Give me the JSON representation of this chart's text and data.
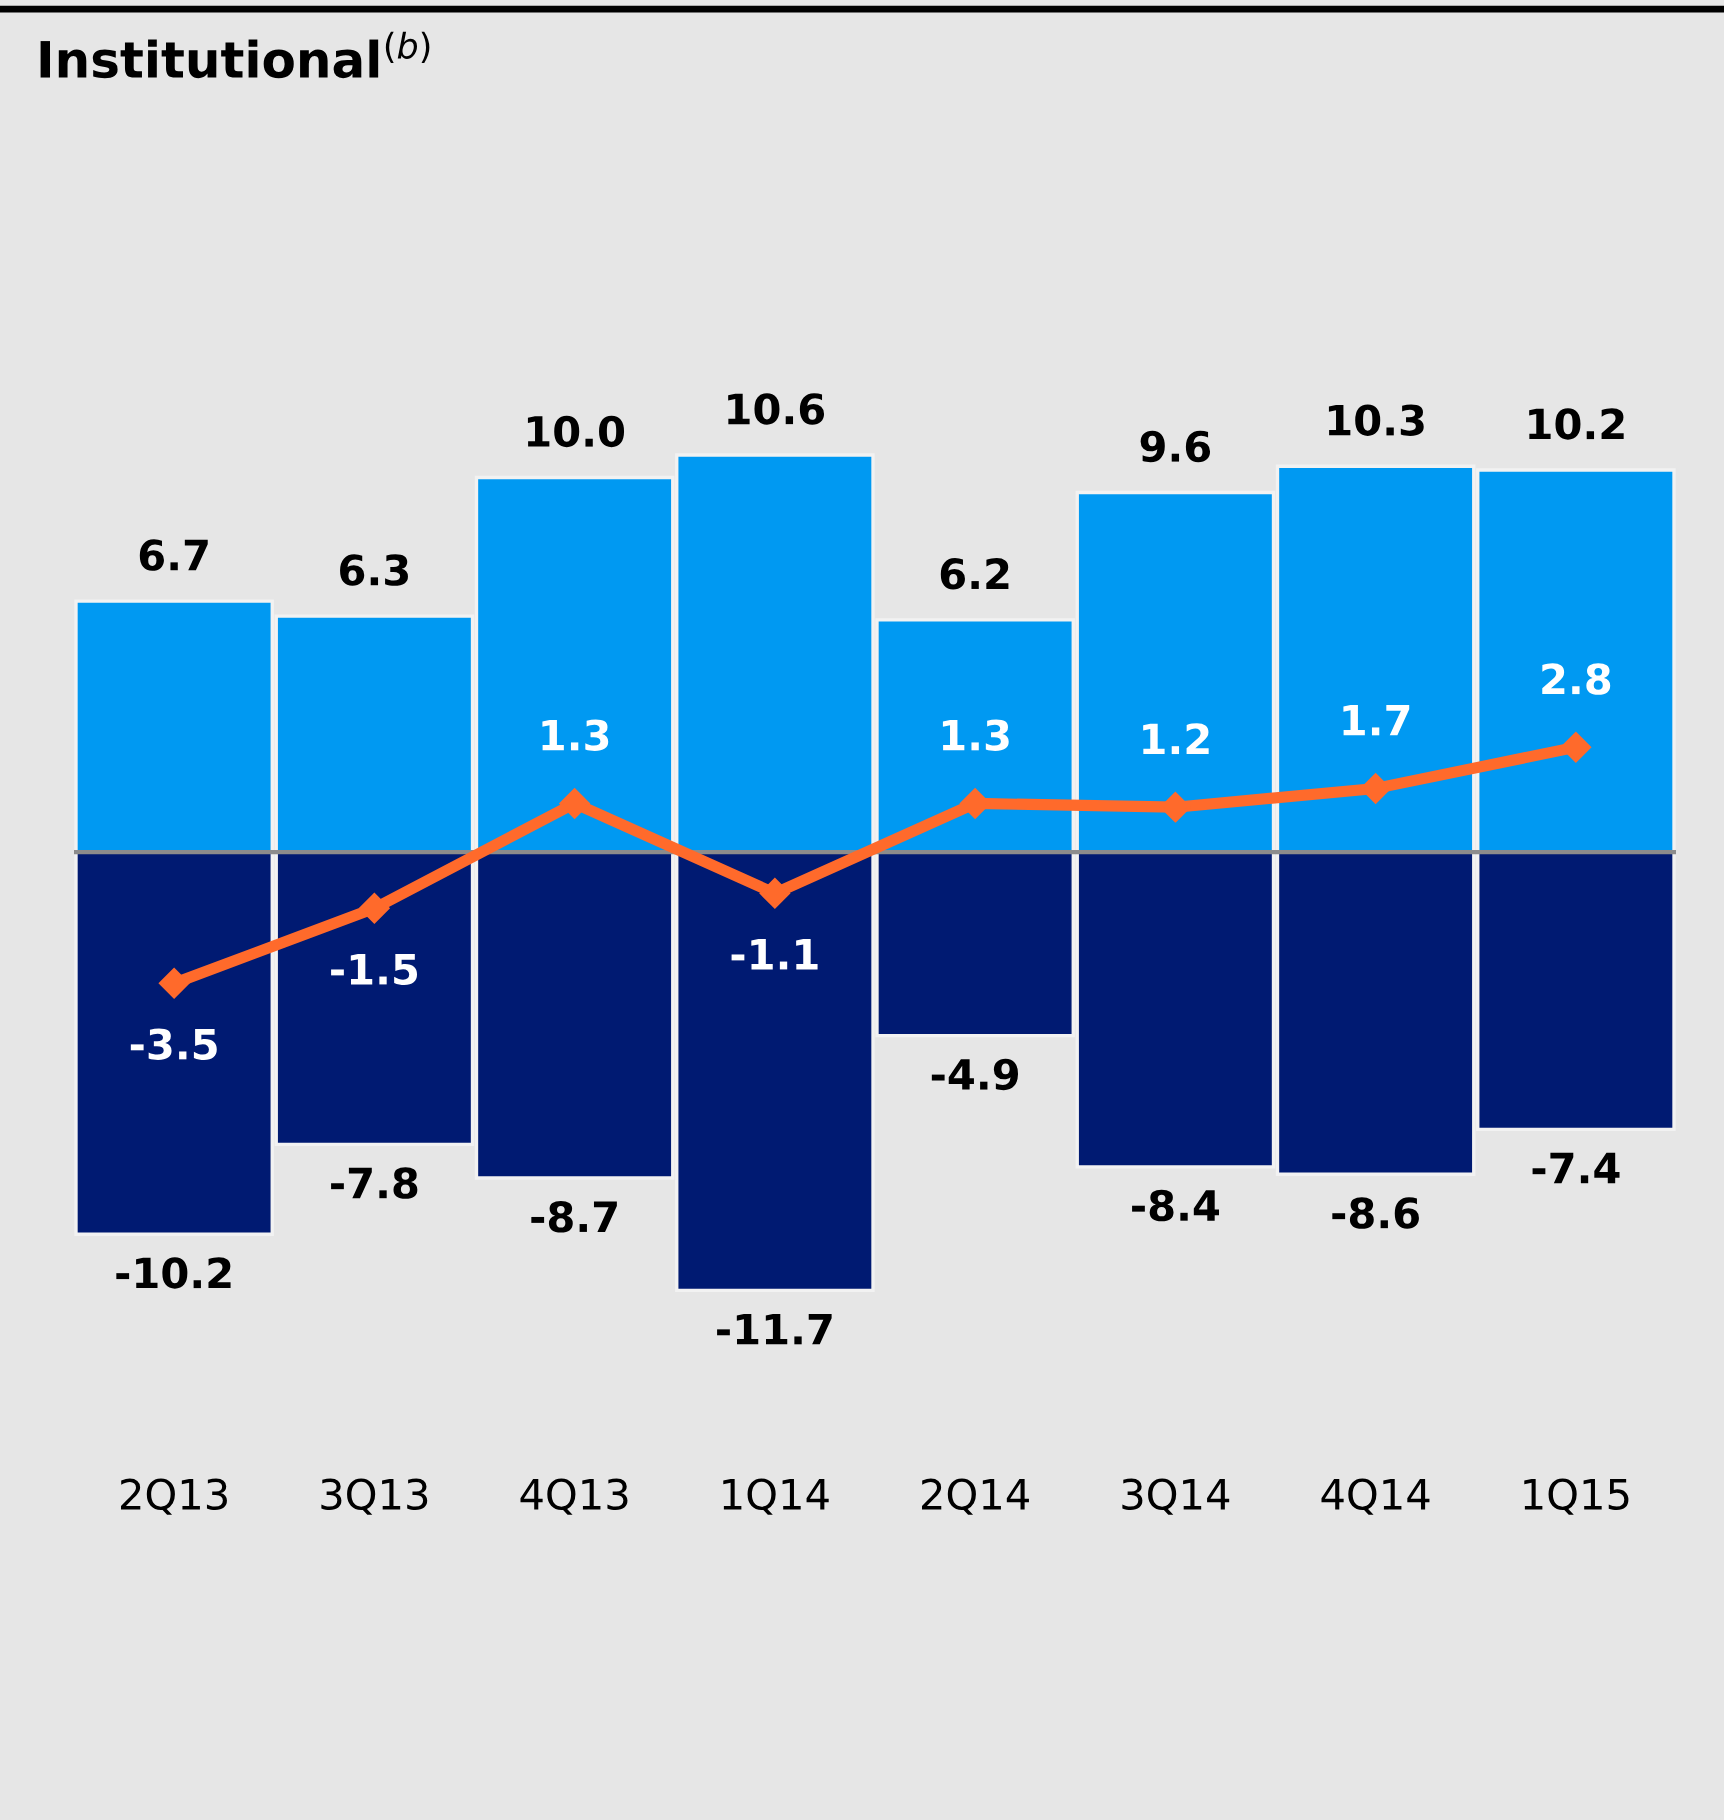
{
  "chart_data": {
    "type": "bar",
    "title": "Institutional$^{(b)}$",
    "stacked": true,
    "categories": [
      "2Q13",
      "3Q13",
      "4Q13",
      "1Q14",
      "2Q14",
      "3Q14",
      "4Q14",
      "1Q15"
    ],
    "series": [
      {
        "color": "#0099f2",
        "values": [
          6.7,
          6.3,
          10.0,
          10.6,
          6.2,
          9.6,
          10.3,
          10.2
        ],
        "value_labels": [
          "6.7",
          "6.3",
          "10.0",
          "10.6",
          "6.2",
          "9.6",
          "10.3",
          "10.2"
        ]
      },
      {
        "color": "#001a72",
        "values": [
          -10.2,
          -7.8,
          -8.7,
          -11.7,
          -4.9,
          -8.4,
          -8.6,
          -7.4
        ],
        "value_labels": [
          "-10.2",
          "-7.8",
          "-8.7",
          "-11.7",
          "-4.9",
          "-8.4",
          "-8.6",
          "-7.4"
        ]
      },
      {
        "type": "line",
        "color": "#ff6a2b",
        "marker": "diamond",
        "values": [
          -3.5,
          -1.5,
          1.3,
          -1.1,
          1.3,
          1.2,
          1.7,
          2.8
        ],
        "value_labels": [
          "-3.5",
          "-1.5",
          "1.3",
          "-1.1",
          "1.3",
          "1.2",
          "1.7",
          "2.8"
        ]
      }
    ],
    "grid": false
  }
}
